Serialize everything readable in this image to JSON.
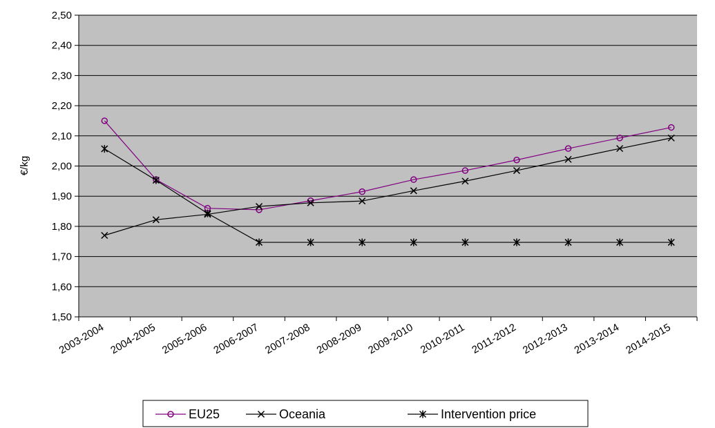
{
  "chart_data": {
    "type": "line",
    "title": "",
    "xlabel": "",
    "ylabel": "€/kg",
    "ylim": [
      1.5,
      2.5
    ],
    "yticks": [
      "1,50",
      "1,60",
      "1,70",
      "1,80",
      "1,90",
      "2,00",
      "2,10",
      "2,20",
      "2,30",
      "2,40",
      "2,50"
    ],
    "categories": [
      "2003-2004",
      "2004-2005",
      "2005-2006",
      "2006-2007",
      "2007-2008",
      "2008-2009",
      "2009-2010",
      "2010-2011",
      "2011-2012",
      "2012-2013",
      "2013-2014",
      "2014-2015"
    ],
    "grid": "horizontal",
    "legend_position": "bottom",
    "plot_background": "#c0c0c0",
    "series": [
      {
        "name": "EU25",
        "marker": "circle",
        "color": "#800080",
        "values": [
          2.15,
          1.955,
          1.86,
          1.855,
          1.885,
          1.915,
          1.955,
          1.985,
          2.02,
          2.058,
          2.093,
          2.128
        ]
      },
      {
        "name": "Oceania",
        "marker": "x",
        "color": "#000000",
        "values": [
          1.77,
          1.822,
          1.84,
          1.866,
          1.878,
          1.884,
          1.918,
          1.95,
          1.985,
          2.022,
          2.058,
          2.093
        ]
      },
      {
        "name": "Intervention price",
        "marker": "star",
        "color": "#000000",
        "values": [
          2.057,
          1.953,
          1.843,
          1.747,
          1.747,
          1.747,
          1.747,
          1.747,
          1.747,
          1.747,
          1.747,
          1.747
        ]
      }
    ]
  }
}
